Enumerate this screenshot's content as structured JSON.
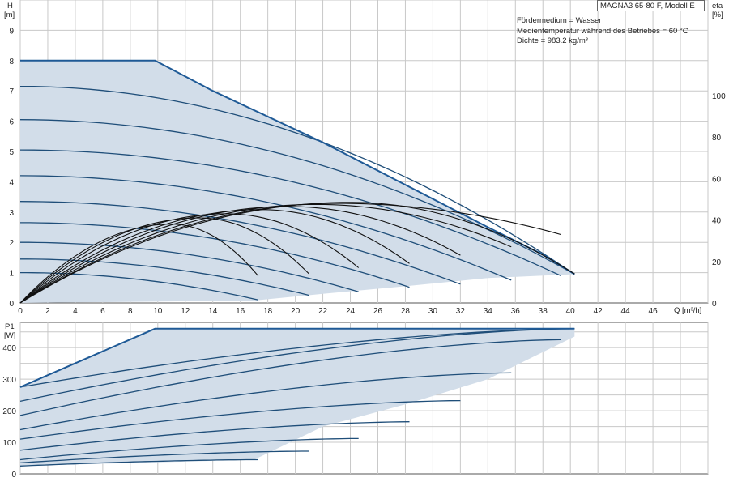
{
  "header": {
    "title": "MAGNA3 65-80 F, Modell E",
    "lines": [
      "Fördermedium = Wasser",
      "Medientemperatur während des Betriebes = 60 °C",
      "Dichte = 983.2 kg/m³"
    ]
  },
  "axes": {
    "h_label": "H",
    "h_unit": "[m]",
    "eta_label": "eta",
    "eta_unit": "[%]",
    "q_label": "Q [m³/h]",
    "p_label": "P1",
    "p_unit": "[W]"
  },
  "colors": {
    "curve": "#1f4e79",
    "envelope": "#1f5a96",
    "fill": "#d2dde9",
    "grid": "#c8c8c8",
    "eta": "#111111"
  },
  "chart_data": [
    {
      "type": "line",
      "subplot": "head",
      "xlabel": "Q [m³/h]",
      "ylabel": "H [m]",
      "y2label": "eta [%]",
      "xlim": [
        0,
        50
      ],
      "ylim": [
        0,
        10
      ],
      "y2lim": [
        0,
        146
      ],
      "xticks": [
        0,
        2,
        4,
        6,
        8,
        10,
        12,
        14,
        16,
        18,
        20,
        22,
        24,
        26,
        28,
        30,
        32,
        34,
        36,
        38,
        40,
        42,
        44,
        46
      ],
      "yticks": [
        0,
        1,
        2,
        3,
        4,
        5,
        6,
        7,
        8,
        9
      ],
      "y2ticks": [
        0,
        20,
        40,
        60,
        80,
        100
      ],
      "grid": true,
      "envelope": {
        "x": [
          0,
          9.8,
          14,
          22,
          28,
          34,
          38,
          40.3,
          34,
          28,
          22,
          17,
          0
        ],
        "y": [
          8,
          8,
          7.0,
          5.3,
          3.9,
          2.5,
          1.6,
          0.95,
          0.82,
          0.55,
          0.3,
          0.08,
          0
        ]
      },
      "series": [
        {
          "x": [
            0,
            17.3
          ],
          "y": [
            1.0,
            1.0
          ],
          "end_y": 0.1
        },
        {
          "x": [
            0,
            21.0
          ],
          "y": [
            1.45,
            1.45
          ],
          "end_y": 0.25
        },
        {
          "x": [
            0,
            24.6
          ],
          "y": [
            2.0,
            2.0
          ],
          "end_y": 0.37
        },
        {
          "x": [
            0,
            28.3
          ],
          "y": [
            2.65,
            2.65
          ],
          "end_y": 0.52
        },
        {
          "x": [
            0,
            32.0
          ],
          "y": [
            3.35,
            3.35
          ],
          "end_y": 0.62
        },
        {
          "x": [
            0,
            35.7
          ],
          "y": [
            4.2,
            4.2
          ],
          "end_y": 0.75
        },
        {
          "x": [
            0,
            39.3
          ],
          "y": [
            5.05,
            5.05
          ],
          "end_y": 0.9
        },
        {
          "x": [
            0,
            40.3
          ],
          "y": [
            6.05,
            6.05
          ],
          "end_y": 0.95
        },
        {
          "x": [
            0,
            40.3
          ],
          "y": [
            7.15,
            7.15
          ],
          "end_y": 0.95
        }
      ],
      "eta_series": [
        {
          "peak_x": 11,
          "peak": 38,
          "end_x": 17.3,
          "end": 13
        },
        {
          "peak_x": 13,
          "peak": 41,
          "end_x": 21.0,
          "end": 14
        },
        {
          "peak_x": 15,
          "peak": 43,
          "end_x": 24.6,
          "end": 17
        },
        {
          "peak_x": 17.5,
          "peak": 45,
          "end_x": 28.3,
          "end": 19
        },
        {
          "peak_x": 19.5,
          "peak": 46.5,
          "end_x": 32.0,
          "end": 23
        },
        {
          "peak_x": 21.5,
          "peak": 47.5,
          "end_x": 35.7,
          "end": 27
        },
        {
          "peak_x": 23,
          "peak": 48,
          "end_x": 39.3,
          "end": 33
        },
        {
          "peak_x": 24,
          "peak": 48.5,
          "end_x": 40.3,
          "end": 14
        }
      ]
    },
    {
      "type": "line",
      "subplot": "power",
      "xlabel": "Q [m³/h]",
      "ylabel": "P1 [W]",
      "xlim": [
        0,
        50
      ],
      "ylim": [
        0,
        480
      ],
      "yticks": [
        0,
        100,
        200,
        300,
        400
      ],
      "grid": true,
      "envelope": {
        "x": [
          0,
          9.8,
          40.3,
          40.3,
          34,
          28,
          22,
          17,
          0
        ],
        "y": [
          275,
          460,
          460,
          435,
          300,
          220,
          150,
          45,
          25
        ]
      },
      "series": [
        {
          "x": [
            0,
            17.3
          ],
          "y": [
            25,
            45
          ]
        },
        {
          "x": [
            0,
            21.0
          ],
          "y": [
            35,
            72
          ]
        },
        {
          "x": [
            0,
            24.6
          ],
          "y": [
            45,
            112
          ]
        },
        {
          "x": [
            0,
            28.3
          ],
          "y": [
            75,
            165
          ]
        },
        {
          "x": [
            0,
            32.0
          ],
          "y": [
            110,
            232
          ]
        },
        {
          "x": [
            0,
            35.7
          ],
          "y": [
            140,
            320
          ]
        },
        {
          "x": [
            0,
            39.3
          ],
          "y": [
            185,
            425
          ]
        },
        {
          "x": [
            0,
            40.3
          ],
          "y": [
            230,
            460
          ]
        },
        {
          "x": [
            0,
            40.3
          ],
          "y": [
            275,
            460
          ]
        }
      ]
    }
  ]
}
